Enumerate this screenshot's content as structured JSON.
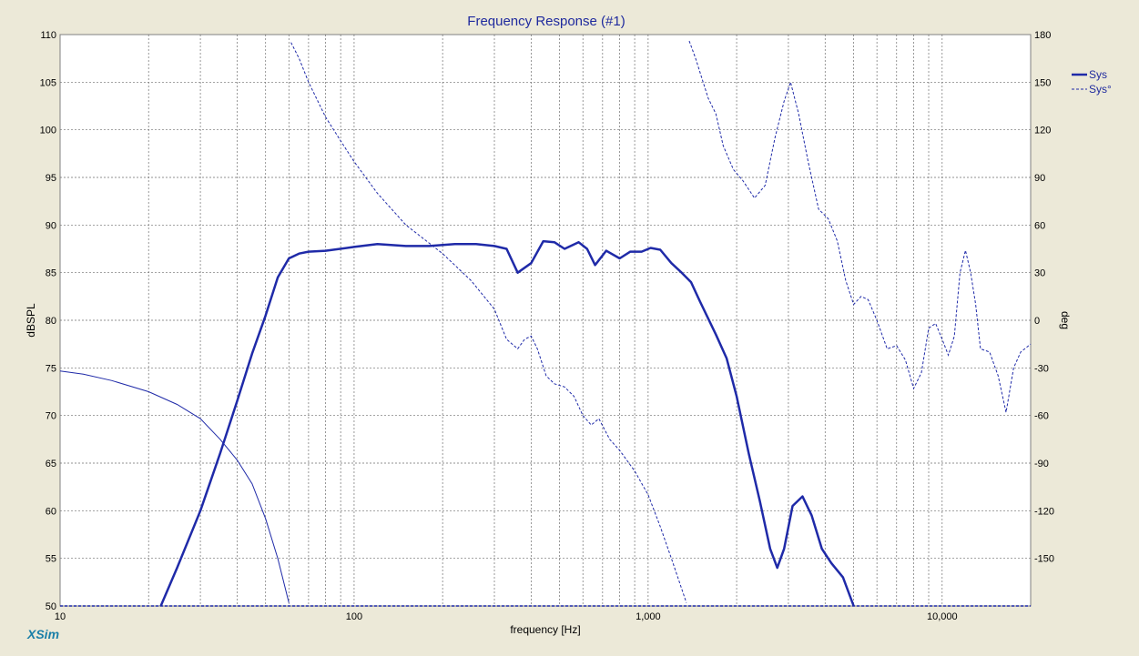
{
  "chart_data": {
    "type": "line",
    "title": "Frequency Response (#1)",
    "xlabel": "frequency [Hz]",
    "ylabel": "dBSPL",
    "y2label": "deg",
    "x_scale": "log",
    "xlim": [
      10,
      20000
    ],
    "ylim": [
      50,
      110
    ],
    "y2lim": [
      -180,
      180
    ],
    "grid": true,
    "legend_position": "top-right",
    "x_tick_labels": [
      {
        "value": 10,
        "label": "10"
      },
      {
        "value": 100,
        "label": "100"
      },
      {
        "value": 1000,
        "label": "1,000"
      },
      {
        "value": 10000,
        "label": "10,000"
      }
    ],
    "y_ticks": [
      50,
      55,
      60,
      65,
      70,
      75,
      80,
      85,
      90,
      95,
      100,
      105,
      110
    ],
    "y2_ticks": [
      180,
      150,
      120,
      90,
      60,
      30,
      0,
      -30,
      -60,
      -90,
      -120,
      -150
    ],
    "series": [
      {
        "name": "Sys",
        "axis": "left",
        "style": "solid",
        "color": "#1f2aa8",
        "points": [
          [
            22,
            50
          ],
          [
            25,
            54
          ],
          [
            30,
            60
          ],
          [
            35,
            66
          ],
          [
            40,
            71.5
          ],
          [
            45,
            76.5
          ],
          [
            50,
            80.5
          ],
          [
            55,
            84.5
          ],
          [
            60,
            86.5
          ],
          [
            65,
            87
          ],
          [
            70,
            87.2
          ],
          [
            80,
            87.3
          ],
          [
            100,
            87.7
          ],
          [
            120,
            88
          ],
          [
            150,
            87.8
          ],
          [
            180,
            87.8
          ],
          [
            220,
            88
          ],
          [
            260,
            88
          ],
          [
            300,
            87.8
          ],
          [
            330,
            87.5
          ],
          [
            360,
            85
          ],
          [
            400,
            86
          ],
          [
            440,
            88.3
          ],
          [
            480,
            88.2
          ],
          [
            520,
            87.5
          ],
          [
            580,
            88.2
          ],
          [
            620,
            87.5
          ],
          [
            660,
            85.8
          ],
          [
            720,
            87.3
          ],
          [
            800,
            86.5
          ],
          [
            870,
            87.2
          ],
          [
            950,
            87.2
          ],
          [
            1020,
            87.6
          ],
          [
            1100,
            87.4
          ],
          [
            1200,
            86
          ],
          [
            1300,
            85
          ],
          [
            1400,
            84
          ],
          [
            1500,
            82
          ],
          [
            1700,
            78.5
          ],
          [
            1850,
            76
          ],
          [
            2000,
            72
          ],
          [
            2200,
            66
          ],
          [
            2400,
            61
          ],
          [
            2600,
            56
          ],
          [
            2750,
            54
          ],
          [
            2900,
            56
          ],
          [
            3100,
            60.5
          ],
          [
            3350,
            61.5
          ],
          [
            3600,
            59.5
          ],
          [
            3900,
            56
          ],
          [
            4200,
            54.5
          ],
          [
            4600,
            53
          ],
          [
            5000,
            50
          ]
        ]
      },
      {
        "name": "Sys°",
        "axis": "right",
        "style": "dashed",
        "color": "#1f2aa8",
        "segments": [
          [
            [
              10,
              -32
            ],
            [
              12,
              -34
            ],
            [
              15,
              -38
            ],
            [
              20,
              -45
            ],
            [
              25,
              -53
            ],
            [
              30,
              -62
            ],
            [
              35,
              -75
            ],
            [
              40,
              -88
            ],
            [
              45,
              -103
            ],
            [
              50,
              -125
            ],
            [
              55,
              -150
            ],
            [
              60,
              -178
            ]
          ],
          [
            [
              61,
              175
            ],
            [
              65,
              165
            ],
            [
              70,
              150
            ],
            [
              80,
              128
            ],
            [
              90,
              113
            ],
            [
              100,
              100
            ],
            [
              120,
              80
            ],
            [
              150,
              60
            ],
            [
              200,
              42
            ],
            [
              250,
              25
            ],
            [
              300,
              7
            ],
            [
              330,
              -12
            ],
            [
              360,
              -18
            ],
            [
              380,
              -12
            ],
            [
              400,
              -10
            ],
            [
              420,
              -18
            ],
            [
              450,
              -35
            ],
            [
              480,
              -40
            ],
            [
              520,
              -42
            ],
            [
              560,
              -48
            ],
            [
              600,
              -60
            ],
            [
              640,
              -66
            ],
            [
              680,
              -62
            ],
            [
              740,
              -75
            ],
            [
              800,
              -82
            ],
            [
              900,
              -95
            ],
            [
              1000,
              -110
            ],
            [
              1100,
              -130
            ],
            [
              1200,
              -150
            ],
            [
              1350,
              -178
            ]
          ],
          [
            [
              1380,
              176
            ],
            [
              1450,
              165
            ],
            [
              1600,
              140
            ],
            [
              1700,
              130
            ],
            [
              1800,
              110
            ],
            [
              1950,
              95
            ],
            [
              2100,
              88
            ],
            [
              2300,
              77
            ],
            [
              2500,
              85
            ],
            [
              2700,
              115
            ],
            [
              2900,
              138
            ],
            [
              3050,
              150
            ],
            [
              3250,
              130
            ],
            [
              3500,
              100
            ],
            [
              3800,
              70
            ],
            [
              4100,
              64
            ],
            [
              4400,
              50
            ],
            [
              4700,
              25
            ],
            [
              5000,
              10
            ],
            [
              5300,
              15
            ],
            [
              5600,
              13
            ],
            [
              6000,
              0
            ],
            [
              6500,
              -18
            ],
            [
              7000,
              -16
            ],
            [
              7500,
              -25
            ],
            [
              8000,
              -43
            ],
            [
              8500,
              -33
            ],
            [
              9000,
              -5
            ],
            [
              9500,
              -2
            ],
            [
              10000,
              -12
            ],
            [
              10500,
              -22
            ],
            [
              11000,
              -10
            ],
            [
              11500,
              30
            ],
            [
              12000,
              44
            ],
            [
              12500,
              30
            ],
            [
              13000,
              10
            ],
            [
              13500,
              -18
            ],
            [
              14500,
              -20
            ],
            [
              15500,
              -35
            ],
            [
              16500,
              -58
            ],
            [
              17500,
              -30
            ],
            [
              18500,
              -20
            ],
            [
              20000,
              -15
            ]
          ]
        ]
      }
    ]
  },
  "footer": {
    "brand": "XSim"
  }
}
